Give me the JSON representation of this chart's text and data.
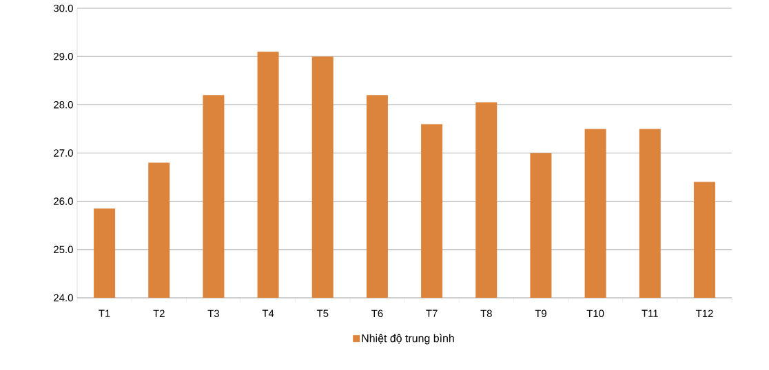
{
  "chart_data": {
    "type": "bar",
    "categories": [
      "T1",
      "T2",
      "T3",
      "T4",
      "T5",
      "T6",
      "T7",
      "T8",
      "T9",
      "T10",
      "T11",
      "T12"
    ],
    "series": [
      {
        "name": "Nhiệt độ trung bình",
        "color": "#dc843c",
        "values": [
          25.85,
          26.8,
          28.2,
          29.1,
          29.0,
          28.2,
          27.6,
          28.05,
          27.0,
          27.5,
          27.5,
          26.4
        ]
      }
    ],
    "ylim": [
      24,
      30
    ],
    "yticks": [
      {
        "value": 24,
        "label": "24.0"
      },
      {
        "value": 25,
        "label": "25.0"
      },
      {
        "value": 26,
        "label": "26.0"
      },
      {
        "value": 27,
        "label": "27.0"
      },
      {
        "value": 28,
        "label": "28.0"
      },
      {
        "value": 29,
        "label": "29.0"
      },
      {
        "value": 30,
        "label": "30.0"
      }
    ],
    "grid": "y",
    "legend": "bottom"
  }
}
